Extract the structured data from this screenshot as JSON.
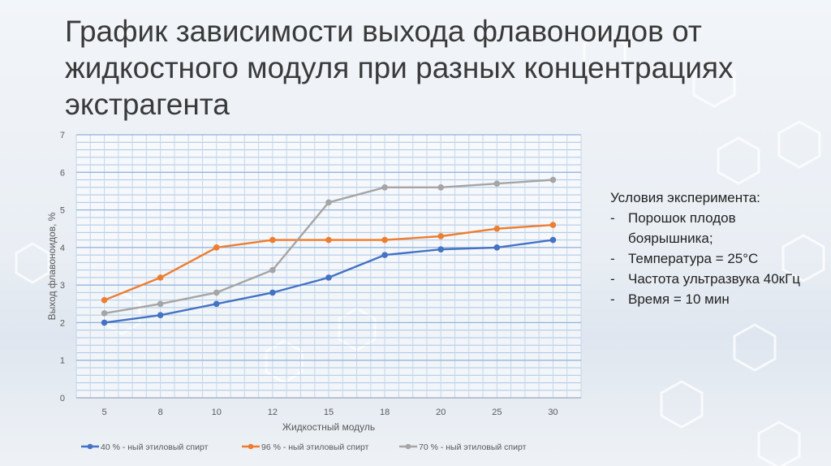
{
  "title": "График зависимости выхода флавоноидов от жидкостного модуля при разных концентрациях экстрагента",
  "conditions": {
    "heading": "Условия эксперимента:",
    "items": [
      "Порошок плодов боярышника;",
      "Температура = 25°С",
      "Частота ультразвука 40кГц",
      "Время = 10 мин"
    ]
  },
  "chart_data": {
    "type": "line",
    "categories": [
      "5",
      "8",
      "10",
      "12",
      "15",
      "18",
      "20",
      "25",
      "30"
    ],
    "xlabel": "Жидкостный модуль",
    "ylabel": "Выход флавоноидов, %",
    "ylim": [
      0,
      7
    ],
    "yticks": [
      "0",
      "1",
      "2",
      "3",
      "4",
      "5",
      "6",
      "7"
    ],
    "grid": true,
    "legend_position": "bottom",
    "series": [
      {
        "name": "40 % - ный этиловый спирт",
        "color": "#4472c4",
        "values": [
          2.0,
          2.2,
          2.5,
          2.8,
          3.2,
          3.8,
          3.95,
          4.0,
          4.2
        ]
      },
      {
        "name": "96 % - ный этиловый спирт",
        "color": "#ed7d31",
        "values": [
          2.6,
          3.2,
          4.0,
          4.2,
          4.2,
          4.2,
          4.3,
          4.5,
          4.6
        ]
      },
      {
        "name": "70 % - ный этиловый спирт",
        "color": "#a5a5a5",
        "values": [
          2.25,
          2.5,
          2.8,
          3.4,
          5.2,
          5.6,
          5.6,
          5.7,
          5.8
        ]
      }
    ]
  }
}
